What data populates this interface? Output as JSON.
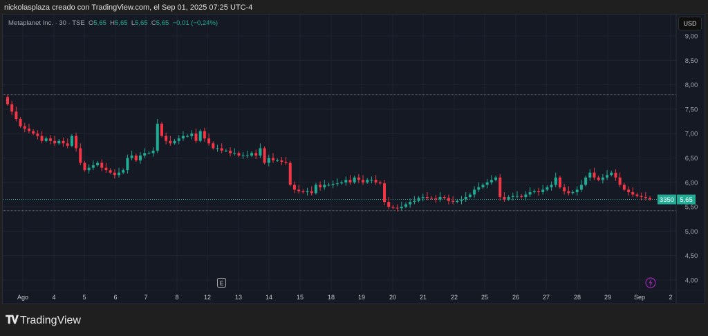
{
  "header": {
    "credit": "nickolasplaza creado con TradingView.com, el Sep 01, 2025 07:25 UTC-4"
  },
  "legend": {
    "symbol": "Metaplanet Inc. · 30 · TSE",
    "o_label": "O",
    "o": "5,65",
    "h_label": "H",
    "h": "5,65",
    "l_label": "L",
    "l": "5,65",
    "c_label": "C",
    "c": "5,65",
    "change": "−0,01 (−0,24%)"
  },
  "currency": "USD",
  "price_tags": {
    "countdown": "3350",
    "last": "5,65"
  },
  "markers": {
    "earnings": "E"
  },
  "footer": {
    "brand": "TradingView",
    "brand_mark": "TV"
  },
  "colors": {
    "up": "#22ab94",
    "down": "#f23645",
    "bg": "#151924",
    "accent": "#9c27b0"
  },
  "chart_data": {
    "type": "candlestick",
    "title": "Metaplanet Inc. · 30 · TSE",
    "ylim": [
      3.9,
      9.2
    ],
    "y_ticks": [
      "9,00",
      "8,50",
      "8,00",
      "7,50",
      "7,00",
      "6,50",
      "6,00",
      "5,50",
      "5,00",
      "4,50",
      "4,00"
    ],
    "y_tick_values": [
      9,
      8.5,
      8,
      7.5,
      7,
      6.5,
      6,
      5.5,
      5,
      4.5,
      4
    ],
    "x_ticks": [
      "Ago",
      "4",
      "5",
      "6",
      "7",
      "8",
      "12",
      "13",
      "14",
      "15",
      "18",
      "19",
      "20",
      "21",
      "22",
      "25",
      "26",
      "27",
      "28",
      "29",
      "Sep",
      "2"
    ],
    "horizontal_lines": [
      7.8,
      5.42
    ],
    "last_price": 5.65,
    "open_start": 7.75,
    "closes": [
      7.6,
      7.45,
      7.3,
      7.15,
      7.1,
      7.05,
      7.0,
      6.95,
      6.85,
      6.9,
      6.85,
      6.8,
      6.85,
      6.8,
      6.75,
      6.95,
      6.7,
      6.4,
      6.25,
      6.3,
      6.35,
      6.4,
      6.3,
      6.25,
      6.2,
      6.15,
      6.2,
      6.25,
      6.5,
      6.55,
      6.45,
      6.55,
      6.6,
      6.6,
      6.65,
      7.2,
      6.95,
      6.85,
      6.8,
      6.85,
      6.9,
      6.95,
      6.95,
      7.0,
      6.85,
      7.05,
      6.9,
      6.8,
      6.7,
      6.7,
      6.65,
      6.65,
      6.6,
      6.6,
      6.55,
      6.55,
      6.55,
      6.6,
      6.55,
      6.7,
      6.4,
      6.5,
      6.45,
      6.45,
      6.42,
      6.4,
      5.95,
      5.85,
      5.82,
      5.8,
      5.82,
      5.78,
      5.95,
      5.9,
      5.95,
      5.95,
      5.97,
      5.98,
      6.0,
      6.05,
      6.0,
      6.1,
      6.05,
      6.0,
      6.05,
      6.05,
      6.0,
      5.98,
      5.6,
      5.5,
      5.48,
      5.47,
      5.5,
      5.55,
      5.6,
      5.62,
      5.68,
      5.7,
      5.68,
      5.67,
      5.65,
      5.7,
      5.68,
      5.62,
      5.6,
      5.62,
      5.65,
      5.7,
      5.75,
      5.85,
      5.9,
      5.95,
      6.0,
      6.05,
      6.1,
      5.7,
      5.65,
      5.7,
      5.72,
      5.72,
      5.7,
      5.75,
      5.8,
      5.82,
      5.8,
      5.85,
      5.9,
      5.95,
      6.1,
      5.9,
      5.82,
      5.78,
      5.8,
      5.85,
      5.95,
      6.1,
      6.2,
      6.1,
      6.05,
      6.1,
      6.15,
      6.2,
      6.1,
      5.95,
      5.85,
      5.8,
      5.75,
      5.72,
      5.7,
      5.68,
      5.65
    ]
  }
}
